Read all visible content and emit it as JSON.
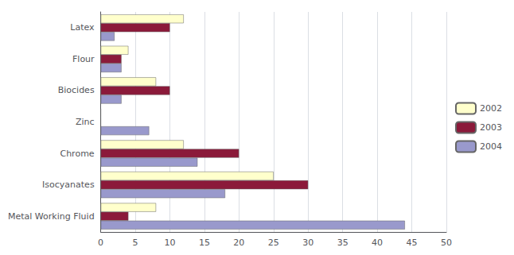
{
  "chart_data": {
    "type": "bar",
    "orientation": "horizontal",
    "categories": [
      "Metal Working Fluid",
      "Isocyanates",
      "Chrome",
      "Zinc",
      "Biocides",
      "Flour",
      "Latex"
    ],
    "series": [
      {
        "name": "2002",
        "color": "#FFFFCC",
        "values": [
          8,
          25,
          12,
          0,
          8,
          4,
          12
        ]
      },
      {
        "name": "2003",
        "color": "#8B1A3A",
        "values": [
          4,
          30,
          20,
          0,
          10,
          3,
          10
        ]
      },
      {
        "name": "2004",
        "color": "#9999CC",
        "values": [
          44,
          18,
          14,
          7,
          3,
          3,
          2
        ]
      }
    ],
    "xlim": [
      0,
      50
    ],
    "xticks": [
      0,
      5,
      10,
      15,
      20,
      25,
      30,
      35,
      40,
      45,
      50
    ],
    "grid": true,
    "legend": "right"
  }
}
